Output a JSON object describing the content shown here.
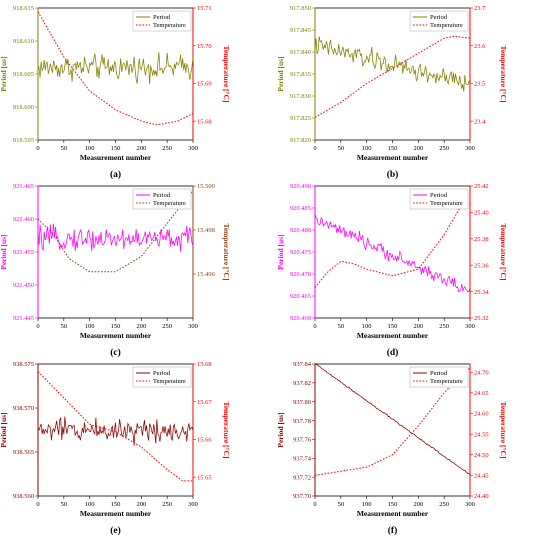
{
  "chart_data": [
    {
      "type": "line",
      "panel_label": "(a)",
      "xlabel": "Measurement number",
      "ylabel": "Period [us]",
      "y2label": "Temperature [°C]",
      "xlim": [
        0,
        300
      ],
      "xticks": [
        "0",
        "50",
        "100",
        "150",
        "200",
        "250",
        "300"
      ],
      "ylim": [
        918.595,
        918.615
      ],
      "yticks": [
        "918.595",
        "918.600",
        "918.605",
        "918.610",
        "918.615"
      ],
      "y2lim": [
        15.675,
        15.71
      ],
      "y2ticks": [
        "15.68",
        "15.69",
        "15.70",
        "15.71"
      ],
      "legend_position": "top-right",
      "colors": {
        "period": "#808000",
        "temperature": "#ff0000"
      },
      "series": [
        {
          "name": "Period",
          "axis": "left",
          "style": "solid",
          "x": [
            0,
            300
          ],
          "mean": 918.606,
          "noise": 0.0028,
          "trend": 0
        },
        {
          "name": "Temperature",
          "axis": "right",
          "style": "dotted",
          "x": [
            0,
            50,
            100,
            150,
            200,
            230,
            270,
            300
          ],
          "values": [
            15.709,
            15.697,
            15.688,
            15.683,
            15.68,
            15.679,
            15.68,
            15.682
          ]
        }
      ]
    },
    {
      "type": "line",
      "panel_label": "(b)",
      "xlabel": "Measurement number",
      "ylabel": "Period [us]",
      "y2label": "Temperature [°C]",
      "xlim": [
        0,
        300
      ],
      "xticks": [
        "0",
        "50",
        "100",
        "150",
        "200",
        "250",
        "300"
      ],
      "ylim": [
        917.82,
        917.85
      ],
      "yticks": [
        "917.820",
        "917.825",
        "917.830",
        "917.835",
        "917.840",
        "917.845",
        "917.850"
      ],
      "y2lim": [
        23.35,
        23.7
      ],
      "y2ticks": [
        "23.4",
        "23.5",
        "23.6",
        "23.7"
      ],
      "legend_position": "top-right",
      "colors": {
        "period": "#808000",
        "temperature": "#ff0000"
      },
      "series": [
        {
          "name": "Period",
          "axis": "left",
          "style": "solid",
          "x": [
            0,
            300
          ],
          "mean": 917.8415,
          "noise": 0.0035,
          "trend": -0.009
        },
        {
          "name": "Temperature",
          "axis": "right",
          "style": "dotted",
          "x": [
            0,
            50,
            100,
            150,
            200,
            250,
            270,
            300
          ],
          "values": [
            23.41,
            23.45,
            23.5,
            23.54,
            23.58,
            23.62,
            23.625,
            23.62
          ]
        }
      ]
    },
    {
      "type": "line",
      "panel_label": "(c)",
      "xlabel": "Measurement number",
      "ylabel": "Period [us]",
      "y2label": "Temperature [°C]",
      "xlim": [
        0,
        300
      ],
      "xticks": [
        "0",
        "50",
        "100",
        "150",
        "200",
        "250",
        "300"
      ],
      "ylim": [
        921.445,
        921.465
      ],
      "yticks": [
        "921.445",
        "921.450",
        "921.455",
        "921.460",
        "921.465"
      ],
      "y2lim": [
        15.494,
        15.5
      ],
      "y2ticks": [
        "15.496",
        "15.498",
        "15.500"
      ],
      "legend_position": "top-right",
      "colors": {
        "period": "#ff00ff",
        "temperature": "#8b4513"
      },
      "series": [
        {
          "name": "Period",
          "axis": "left",
          "style": "solid",
          "x": [
            0,
            300
          ],
          "mean": 921.457,
          "noise": 0.0026,
          "trend": 0
        },
        {
          "name": "Temperature",
          "axis": "right",
          "style": "dotted",
          "x": [
            0,
            30,
            60,
            100,
            150,
            200,
            250,
            300
          ],
          "values": [
            15.4985,
            15.4978,
            15.4967,
            15.4961,
            15.4961,
            15.4968,
            15.4983,
            15.4998
          ]
        }
      ]
    },
    {
      "type": "line",
      "panel_label": "(d)",
      "xlabel": "Measurement number",
      "ylabel": "Period [us]",
      "y2label": "Temperature [°C]",
      "xlim": [
        0,
        300
      ],
      "xticks": [
        "0",
        "50",
        "100",
        "150",
        "200",
        "250",
        "300"
      ],
      "ylim": [
        920.46,
        920.49
      ],
      "yticks": [
        "920.460",
        "920.465",
        "920.470",
        "920.475",
        "920.480",
        "920.485",
        "920.490"
      ],
      "y2lim": [
        25.32,
        25.42
      ],
      "y2ticks": [
        "25.32",
        "25.34",
        "25.36",
        "25.38",
        "25.40",
        "25.42"
      ],
      "legend_position": "top-right",
      "colors": {
        "period": "#ff00ff",
        "temperature": "#ff0000"
      },
      "series": [
        {
          "name": "Period",
          "axis": "left",
          "style": "solid",
          "x": [
            0,
            300
          ],
          "mean": 920.4825,
          "noise": 0.0022,
          "trend": -0.0165
        },
        {
          "name": "Temperature",
          "axis": "right",
          "style": "dotted",
          "x": [
            0,
            25,
            50,
            75,
            100,
            150,
            200,
            250,
            280,
            300
          ],
          "values": [
            25.343,
            25.355,
            25.363,
            25.361,
            25.357,
            25.352,
            25.357,
            25.383,
            25.403,
            25.407
          ]
        }
      ]
    },
    {
      "type": "line",
      "panel_label": "(e)",
      "xlabel": "Measurement number",
      "ylabel": "Period [us]",
      "y2label": "Temperature [°C]",
      "xlim": [
        0,
        300
      ],
      "xticks": [
        "0",
        "50",
        "100",
        "150",
        "200",
        "250",
        "300"
      ],
      "ylim": [
        938.56,
        938.575
      ],
      "yticks": [
        "938.560",
        "938.565",
        "938.570",
        "938.575"
      ],
      "y2lim": [
        15.645,
        15.68
      ],
      "y2ticks": [
        "15.65",
        "15.66",
        "15.67",
        "15.68"
      ],
      "legend_position": "top-right",
      "colors": {
        "period": "#8b0000",
        "temperature": "#ff0000"
      },
      "series": [
        {
          "name": "Period",
          "axis": "left",
          "style": "solid",
          "x": [
            0,
            300
          ],
          "mean": 938.5675,
          "noise": 0.002,
          "trend": 0
        },
        {
          "name": "Temperature",
          "axis": "right",
          "style": "dotted",
          "x": [
            0,
            50,
            100,
            150,
            200,
            250,
            280,
            300
          ],
          "values": [
            15.678,
            15.671,
            15.664,
            15.662,
            15.658,
            15.652,
            15.649,
            15.649
          ]
        }
      ]
    },
    {
      "type": "line",
      "panel_label": "(f)",
      "xlabel": "Measurement number",
      "ylabel": "Period [us]",
      "y2label": "Temperature [°C]",
      "xlim": [
        0,
        300
      ],
      "xticks": [
        "0",
        "50",
        "100",
        "150",
        "200",
        "250",
        "300"
      ],
      "ylim": [
        937.7,
        937.84
      ],
      "yticks": [
        "937.70",
        "937.72",
        "937.74",
        "937.76",
        "937.78",
        "937.80",
        "937.82",
        "937.84"
      ],
      "y2lim": [
        24.4,
        24.72
      ],
      "y2ticks": [
        "24.40",
        "24.45",
        "24.50",
        "24.55",
        "24.60",
        "24.65",
        "24.70"
      ],
      "legend_position": "top-right",
      "colors": {
        "period": "#8b0000",
        "temperature": "#ff0000"
      },
      "series": [
        {
          "name": "Period",
          "axis": "left",
          "style": "solid",
          "x": [
            0,
            300
          ],
          "mean": 937.8405,
          "noise": 0.0012,
          "trend": -0.118
        },
        {
          "name": "Temperature",
          "axis": "right",
          "style": "dotted",
          "x": [
            0,
            50,
            100,
            150,
            200,
            250,
            280,
            300
          ],
          "values": [
            24.45,
            24.46,
            24.47,
            24.5,
            24.57,
            24.65,
            24.69,
            24.71
          ]
        }
      ]
    }
  ]
}
